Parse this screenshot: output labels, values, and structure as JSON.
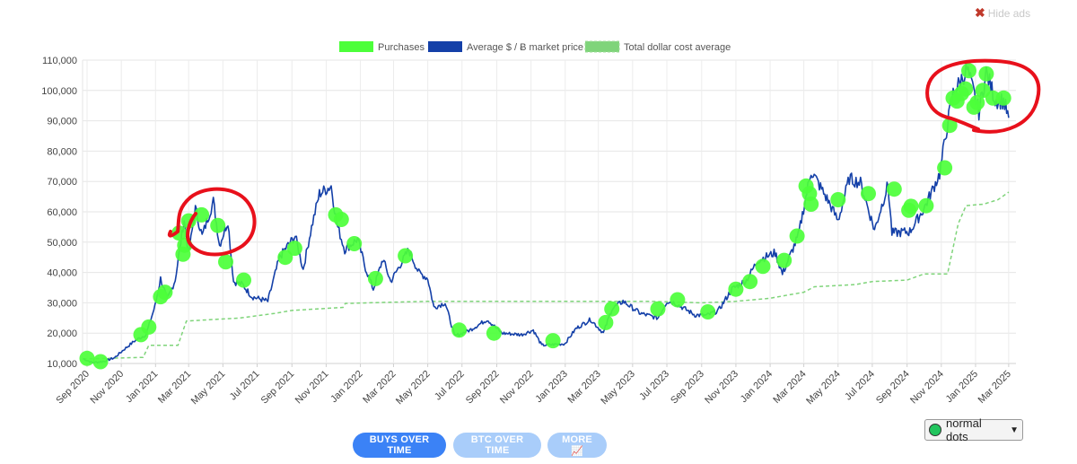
{
  "hide_ads": {
    "label": "Hide ads",
    "icon": "close-x-icon"
  },
  "buttons": {
    "buys": "BUYS OVER TIME",
    "btc": "BTC OVER TIME",
    "more": "MORE",
    "more_icon": "📈"
  },
  "dots_select": {
    "value": "normal dots",
    "icon": "green-dot-icon"
  },
  "colors": {
    "purchases": "#4cff3a",
    "price": "#1440a8",
    "dca": "#7fd47a",
    "annotation": "#e8101b"
  },
  "chart_data": {
    "type": "line",
    "legend": [
      "Purchases",
      "Average $ / Ƀ market price",
      "Total dollar cost average"
    ],
    "legend_position": "top-center",
    "ylim": [
      10000,
      110000
    ],
    "yticks": [
      "10,000",
      "20,000",
      "30,000",
      "40,000",
      "50,000",
      "60,000",
      "70,000",
      "80,000",
      "90,000",
      "100,000",
      "110,000"
    ],
    "xticks": [
      "Sep 2020",
      "Nov 2020",
      "Jan 2021",
      "Mar 2021",
      "May 2021",
      "Jul 2021",
      "Sep 2021",
      "Nov 2021",
      "Jan 2022",
      "Mar 2022",
      "May 2022",
      "Jul 2022",
      "Sep 2022",
      "Nov 2022",
      "Jan 2023",
      "Mar 2023",
      "May 2023",
      "Jul 2023",
      "Sep 2023",
      "Nov 2023",
      "Jan 2024",
      "Mar 2024",
      "May 2024",
      "Jul 2024",
      "Sep 2024",
      "Nov 2024",
      "Jan 2025",
      "Mar 2025"
    ],
    "grid": true,
    "price_series": [
      [
        "2020-08-25",
        11600
      ],
      [
        "2020-09-10",
        10300
      ],
      [
        "2020-10-01",
        10700
      ],
      [
        "2020-10-20",
        11900
      ],
      [
        "2020-11-05",
        14500
      ],
      [
        "2020-11-25",
        17500
      ],
      [
        "2020-12-15",
        19500
      ],
      [
        "2020-12-31",
        28900
      ],
      [
        "2021-01-10",
        38000
      ],
      [
        "2021-01-22",
        31000
      ],
      [
        "2021-02-05",
        37500
      ],
      [
        "2021-02-21",
        57500
      ],
      [
        "2021-03-01",
        46000
      ],
      [
        "2021-03-13",
        61000
      ],
      [
        "2021-03-25",
        52000
      ],
      [
        "2021-04-14",
        63500
      ],
      [
        "2021-04-25",
        49000
      ],
      [
        "2021-05-10",
        57000
      ],
      [
        "2021-05-20",
        37000
      ],
      [
        "2021-06-05",
        36000
      ],
      [
        "2021-06-22",
        32000
      ],
      [
        "2021-07-20",
        30500
      ],
      [
        "2021-08-10",
        45000
      ],
      [
        "2021-08-25",
        49000
      ],
      [
        "2021-09-07",
        52000
      ],
      [
        "2021-09-21",
        41000
      ],
      [
        "2021-10-06",
        55000
      ],
      [
        "2021-10-20",
        66000
      ],
      [
        "2021-11-10",
        68500
      ],
      [
        "2021-11-20",
        56000
      ],
      [
        "2021-12-04",
        47500
      ],
      [
        "2021-12-27",
        51000
      ],
      [
        "2022-01-10",
        41500
      ],
      [
        "2022-01-24",
        34500
      ],
      [
        "2022-02-10",
        44500
      ],
      [
        "2022-02-24",
        37000
      ],
      [
        "2022-03-28",
        47500
      ],
      [
        "2022-04-15",
        40000
      ],
      [
        "2022-05-01",
        38000
      ],
      [
        "2022-05-12",
        28500
      ],
      [
        "2022-06-01",
        30000
      ],
      [
        "2022-06-18",
        19000
      ],
      [
        "2022-07-15",
        21000
      ],
      [
        "2022-08-15",
        24500
      ],
      [
        "2022-09-10",
        20000
      ],
      [
        "2022-10-15",
        19500
      ],
      [
        "2022-11-05",
        21000
      ],
      [
        "2022-11-20",
        16000
      ],
      [
        "2022-12-31",
        16500
      ],
      [
        "2023-01-20",
        21500
      ],
      [
        "2023-02-15",
        24500
      ],
      [
        "2023-03-10",
        20000
      ],
      [
        "2023-03-25",
        28000
      ],
      [
        "2023-04-14",
        30500
      ],
      [
        "2023-05-15",
        26500
      ],
      [
        "2023-06-15",
        25000
      ],
      [
        "2023-07-01",
        30500
      ],
      [
        "2023-07-15",
        30000
      ],
      [
        "2023-08-20",
        26000
      ],
      [
        "2023-09-10",
        25800
      ],
      [
        "2023-10-01",
        27500
      ],
      [
        "2023-10-25",
        34500
      ],
      [
        "2023-11-20",
        37500
      ],
      [
        "2023-12-10",
        44000
      ],
      [
        "2024-01-10",
        46500
      ],
      [
        "2024-01-23",
        39500
      ],
      [
        "2024-02-20",
        52000
      ],
      [
        "2024-03-14",
        73500
      ],
      [
        "2024-03-25",
        70000
      ],
      [
        "2024-04-15",
        63000
      ],
      [
        "2024-05-01",
        57000
      ],
      [
        "2024-05-21",
        71000
      ],
      [
        "2024-06-10",
        69500
      ],
      [
        "2024-07-05",
        54000
      ],
      [
        "2024-07-29",
        69000
      ],
      [
        "2024-08-05",
        53000
      ],
      [
        "2024-09-06",
        53500
      ],
      [
        "2024-10-01",
        61000
      ],
      [
        "2024-10-29",
        72500
      ],
      [
        "2024-11-12",
        89000
      ],
      [
        "2024-11-22",
        99000
      ],
      [
        "2024-12-05",
        103000
      ],
      [
        "2024-12-17",
        107000
      ],
      [
        "2025-01-07",
        93000
      ],
      [
        "2025-01-20",
        106000
      ],
      [
        "2025-02-05",
        97000
      ],
      [
        "2025-02-20",
        96500
      ],
      [
        "2025-03-01",
        91000
      ]
    ],
    "dca_series": [
      [
        "2020-08-25",
        11500
      ],
      [
        "2020-12-10",
        12000
      ],
      [
        "2020-12-20",
        16000
      ],
      [
        "2021-02-10",
        16000
      ],
      [
        "2021-02-25",
        24000
      ],
      [
        "2021-06-01",
        25000
      ],
      [
        "2021-08-01",
        26500
      ],
      [
        "2021-09-01",
        27500
      ],
      [
        "2021-12-01",
        28500
      ],
      [
        "2021-12-05",
        29800
      ],
      [
        "2022-05-01",
        30500
      ],
      [
        "2023-06-01",
        30500
      ],
      [
        "2023-09-01",
        30000
      ],
      [
        "2023-11-01",
        30500
      ],
      [
        "2024-01-01",
        31500
      ],
      [
        "2024-03-01",
        33500
      ],
      [
        "2024-03-20",
        35300
      ],
      [
        "2024-06-01",
        36000
      ],
      [
        "2024-07-01",
        37000
      ],
      [
        "2024-09-01",
        37500
      ],
      [
        "2024-10-01",
        39500
      ],
      [
        "2024-11-12",
        39500
      ],
      [
        "2024-12-01",
        56000
      ],
      [
        "2024-12-15",
        62000
      ],
      [
        "2025-01-15",
        62500
      ],
      [
        "2025-02-10",
        64000
      ],
      [
        "2025-03-01",
        66500
      ]
    ],
    "purchases": [
      [
        "2020-09-01",
        11700
      ],
      [
        "2020-09-25",
        10600
      ],
      [
        "2020-12-06",
        19500
      ],
      [
        "2020-12-20",
        22000
      ],
      [
        "2021-01-10",
        32000
      ],
      [
        "2021-01-18",
        33500
      ],
      [
        "2021-02-12",
        53000
      ],
      [
        "2021-02-19",
        46000
      ],
      [
        "2021-02-22",
        49000
      ],
      [
        "2021-03-01",
        57000
      ],
      [
        "2021-03-24",
        59000
      ],
      [
        "2021-04-22",
        55500
      ],
      [
        "2021-05-06",
        43500
      ],
      [
        "2021-06-07",
        37500
      ],
      [
        "2021-08-20",
        45000
      ],
      [
        "2021-09-06",
        48000
      ],
      [
        "2021-11-18",
        59000
      ],
      [
        "2021-11-28",
        57500
      ],
      [
        "2021-12-21",
        49500
      ],
      [
        "2022-01-28",
        38000
      ],
      [
        "2022-03-22",
        45500
      ],
      [
        "2022-06-26",
        21000
      ],
      [
        "2022-08-27",
        20000
      ],
      [
        "2022-12-10",
        17500
      ],
      [
        "2023-03-14",
        23500
      ],
      [
        "2023-03-25",
        28000
      ],
      [
        "2023-06-15",
        28000
      ],
      [
        "2023-07-20",
        31000
      ],
      [
        "2023-09-12",
        27000
      ],
      [
        "2023-11-01",
        34500
      ],
      [
        "2023-11-26",
        37000
      ],
      [
        "2023-12-19",
        42000
      ],
      [
        "2024-01-26",
        44000
      ],
      [
        "2024-02-18",
        52000
      ],
      [
        "2024-03-05",
        68500
      ],
      [
        "2024-03-11",
        66000
      ],
      [
        "2024-03-14",
        62500
      ],
      [
        "2024-05-01",
        64000
      ],
      [
        "2024-06-24",
        66000
      ],
      [
        "2024-08-09",
        67500
      ],
      [
        "2024-09-04",
        60500
      ],
      [
        "2024-09-08",
        61800
      ],
      [
        "2024-10-05",
        62000
      ],
      [
        "2024-11-07",
        74500
      ],
      [
        "2024-11-16",
        88500
      ],
      [
        "2024-11-22",
        97500
      ],
      [
        "2024-11-29",
        96500
      ],
      [
        "2024-12-07",
        99000
      ],
      [
        "2024-12-14",
        100500
      ],
      [
        "2024-12-20",
        106500
      ],
      [
        "2024-12-29",
        94500
      ],
      [
        "2025-01-04",
        96000
      ],
      [
        "2025-01-14",
        100000
      ],
      [
        "2025-01-20",
        105500
      ],
      [
        "2025-02-01",
        97500
      ],
      [
        "2025-02-20",
        97500
      ]
    ]
  }
}
